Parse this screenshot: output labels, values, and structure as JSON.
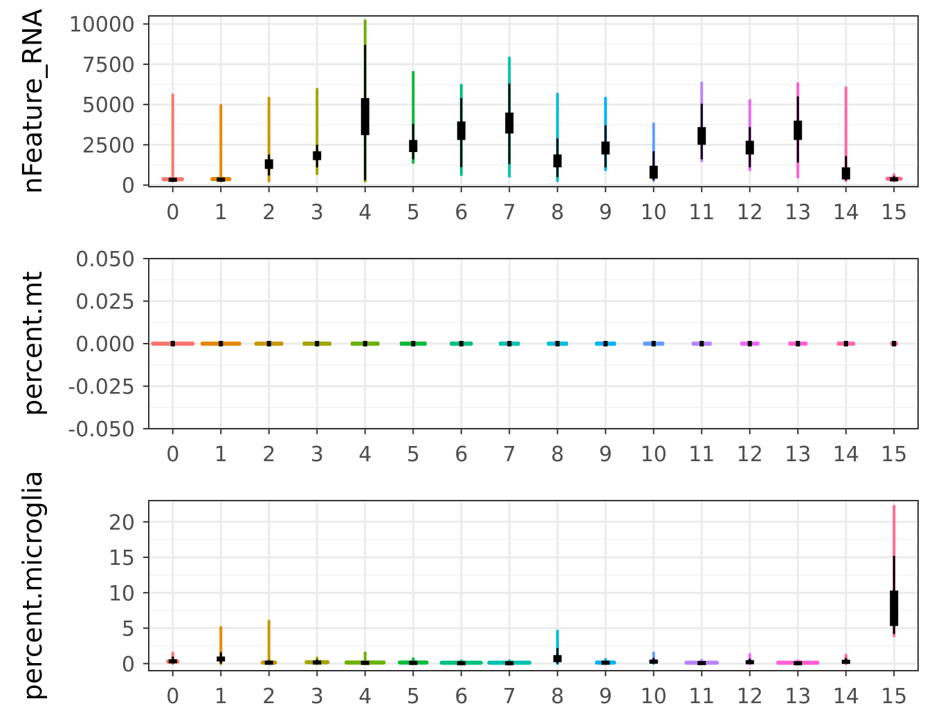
{
  "chart_data": [
    {
      "type": "violin",
      "ylabel": "nFeature_RNA",
      "xlabel": "",
      "categories": [
        "0",
        "1",
        "2",
        "3",
        "4",
        "5",
        "6",
        "7",
        "8",
        "9",
        "10",
        "11",
        "12",
        "13",
        "14",
        "15"
      ],
      "ylim": [
        -100,
        10500
      ],
      "yticks": [
        0,
        2500,
        5000,
        7500,
        10000
      ],
      "grid": true,
      "violins": [
        {
          "min": 250,
          "max": 5600,
          "q1": 300,
          "median": 320,
          "q3": 360,
          "whisker_low": 250,
          "whisker_high": 400,
          "body_width": 0.47
        },
        {
          "min": 250,
          "max": 4950,
          "q1": 300,
          "median": 330,
          "q3": 380,
          "whisker_low": 250,
          "whisker_high": 420,
          "body_width": 0.44
        },
        {
          "min": 260,
          "max": 5400,
          "q1": 1000,
          "median": 1300,
          "q3": 1600,
          "whisker_low": 600,
          "whisker_high": 1900,
          "body_width": 0.08
        },
        {
          "min": 700,
          "max": 5950,
          "q1": 1550,
          "median": 1800,
          "q3": 2100,
          "whisker_low": 1100,
          "whisker_high": 2500,
          "body_width": 0.08
        },
        {
          "min": 250,
          "max": 10200,
          "q1": 3100,
          "median": 4300,
          "q3": 5400,
          "whisker_low": 300,
          "whisker_high": 8700,
          "body_width": 0.08
        },
        {
          "min": 1400,
          "max": 7000,
          "q1": 2050,
          "median": 2400,
          "q3": 2800,
          "whisker_low": 1600,
          "whisker_high": 3800,
          "body_width": 0.08
        },
        {
          "min": 650,
          "max": 6200,
          "q1": 2800,
          "median": 3300,
          "q3": 3950,
          "whisker_low": 1100,
          "whisker_high": 5400,
          "body_width": 0.07
        },
        {
          "min": 550,
          "max": 7900,
          "q1": 3200,
          "median": 3800,
          "q3": 4500,
          "whisker_low": 1300,
          "whisker_high": 6300,
          "body_width": 0.07
        },
        {
          "min": 270,
          "max": 5650,
          "q1": 1100,
          "median": 1500,
          "q3": 1900,
          "whisker_low": 500,
          "whisker_high": 2900,
          "body_width": 0.08
        },
        {
          "min": 950,
          "max": 5400,
          "q1": 1900,
          "median": 2300,
          "q3": 2700,
          "whisker_low": 1100,
          "whisker_high": 3700,
          "body_width": 0.07
        },
        {
          "min": 280,
          "max": 3800,
          "q1": 400,
          "median": 800,
          "q3": 1200,
          "whisker_low": 300,
          "whisker_high": 2100,
          "body_width": 0.08
        },
        {
          "min": 1500,
          "max": 6350,
          "q1": 2500,
          "median": 3000,
          "q3": 3600,
          "whisker_low": 1600,
          "whisker_high": 5050,
          "body_width": 0.07
        },
        {
          "min": 950,
          "max": 5250,
          "q1": 1900,
          "median": 2300,
          "q3": 2750,
          "whisker_low": 1100,
          "whisker_high": 3600,
          "body_width": 0.07
        },
        {
          "min": 500,
          "max": 6300,
          "q1": 2800,
          "median": 3400,
          "q3": 4000,
          "whisker_low": 1400,
          "whisker_high": 5500,
          "body_width": 0.07
        },
        {
          "min": 270,
          "max": 6050,
          "q1": 350,
          "median": 700,
          "q3": 1100,
          "whisker_low": 300,
          "whisker_high": 1800,
          "body_width": 0.08
        },
        {
          "min": 260,
          "max": 650,
          "q1": 290,
          "median": 350,
          "q3": 420,
          "whisker_low": 260,
          "whisker_high": 560,
          "body_width": 0.36
        }
      ]
    },
    {
      "type": "violin",
      "ylabel": "percent.mt",
      "xlabel": "",
      "categories": [
        "0",
        "1",
        "2",
        "3",
        "4",
        "5",
        "6",
        "7",
        "8",
        "9",
        "10",
        "11",
        "12",
        "13",
        "14",
        "15"
      ],
      "ylim": [
        -0.05,
        0.05
      ],
      "yticks": [
        -0.05,
        -0.025,
        0,
        0.025,
        0.05
      ],
      "ytick_labels": [
        "-0.050",
        "-0.025",
        "0.000",
        "0.025",
        "0.050"
      ],
      "grid": true,
      "flat_value": 0,
      "flat_widths": [
        0.9,
        0.84,
        0.6,
        0.6,
        0.6,
        0.56,
        0.48,
        0.44,
        0.44,
        0.44,
        0.44,
        0.42,
        0.4,
        0.4,
        0.38,
        0.16
      ]
    },
    {
      "type": "violin",
      "ylabel": "percent.microglia",
      "xlabel": "",
      "categories": [
        "0",
        "1",
        "2",
        "3",
        "4",
        "5",
        "6",
        "7",
        "8",
        "9",
        "10",
        "11",
        "12",
        "13",
        "14",
        "15"
      ],
      "ylim": [
        -1,
        23
      ],
      "yticks": [
        0,
        5,
        10,
        15,
        20
      ],
      "grid": true,
      "violins": [
        {
          "min": 0,
          "max": 1.5,
          "q1": 0.05,
          "median": 0.2,
          "q3": 0.6,
          "whisker_low": 0,
          "whisker_high": 1.0,
          "body_width": 0.28
        },
        {
          "min": 0,
          "max": 5.1,
          "q1": 0.3,
          "median": 0.6,
          "q3": 1.0,
          "whisker_low": 0,
          "whisker_high": 1.6,
          "body_width": 0.1
        },
        {
          "min": 0,
          "max": 6.0,
          "q1": 0,
          "median": 0.05,
          "q3": 0.25,
          "whisker_low": 0,
          "whisker_high": 0.5,
          "body_width": 0.34
        },
        {
          "min": 0,
          "max": 0.8,
          "q1": 0,
          "median": 0.1,
          "q3": 0.3,
          "whisker_low": 0,
          "whisker_high": 0.6,
          "body_width": 0.52
        },
        {
          "min": 0,
          "max": 1.5,
          "q1": 0,
          "median": 0.05,
          "q3": 0.2,
          "whisker_low": 0,
          "whisker_high": 0.4,
          "body_width": 0.86
        },
        {
          "min": 0,
          "max": 0.7,
          "q1": 0,
          "median": 0.05,
          "q3": 0.2,
          "whisker_low": 0,
          "whisker_high": 0.4,
          "body_width": 0.64
        },
        {
          "min": 0,
          "max": 0.4,
          "q1": 0,
          "median": 0.02,
          "q3": 0.1,
          "whisker_low": 0,
          "whisker_high": 0.2,
          "body_width": 0.9
        },
        {
          "min": 0,
          "max": 0.4,
          "q1": 0,
          "median": 0.02,
          "q3": 0.1,
          "whisker_low": 0,
          "whisker_high": 0.2,
          "body_width": 0.92
        },
        {
          "min": 0,
          "max": 4.6,
          "q1": 0.2,
          "median": 0.6,
          "q3": 1.2,
          "whisker_low": 0,
          "whisker_high": 2.2,
          "body_width": 0.1
        },
        {
          "min": 0,
          "max": 0.6,
          "q1": 0,
          "median": 0.05,
          "q3": 0.25,
          "whisker_low": 0,
          "whisker_high": 0.4,
          "body_width": 0.44
        },
        {
          "min": 0,
          "max": 1.5,
          "q1": 0.05,
          "median": 0.2,
          "q3": 0.5,
          "whisker_low": 0,
          "whisker_high": 0.8,
          "body_width": 0.2
        },
        {
          "min": 0,
          "max": 0.5,
          "q1": 0,
          "median": 0.03,
          "q3": 0.15,
          "whisker_low": 0,
          "whisker_high": 0.3,
          "body_width": 0.72
        },
        {
          "min": 0,
          "max": 1.3,
          "q1": 0,
          "median": 0.1,
          "q3": 0.4,
          "whisker_low": 0,
          "whisker_high": 0.7,
          "body_width": 0.18
        },
        {
          "min": 0,
          "max": 0.4,
          "q1": 0,
          "median": 0.02,
          "q3": 0.1,
          "whisker_low": 0,
          "whisker_high": 0.2,
          "body_width": 0.9
        },
        {
          "min": 0,
          "max": 1.2,
          "q1": 0,
          "median": 0.15,
          "q3": 0.5,
          "whisker_low": 0,
          "whisker_high": 0.8,
          "body_width": 0.12
        },
        {
          "min": 3.9,
          "max": 22.2,
          "q1": 5.3,
          "median": 8.0,
          "q3": 10.3,
          "whisker_low": 4.2,
          "whisker_high": 15.2,
          "body_width": 0.08
        }
      ]
    }
  ],
  "colors": [
    "#F8766D",
    "#E58700",
    "#C99800",
    "#A3A500",
    "#6BB100",
    "#00BA38",
    "#00BF7D",
    "#00C0AF",
    "#00BCD8",
    "#00B0F6",
    "#619CFF",
    "#B983FF",
    "#E76BF3",
    "#FD61D1",
    "#FF67A4",
    "#FF6C91"
  ],
  "box_color": "#000000",
  "grid_major_color": "#EBEBEB",
  "grid_minor_color": "#F2F2F2",
  "panel_border_color": "#333333"
}
